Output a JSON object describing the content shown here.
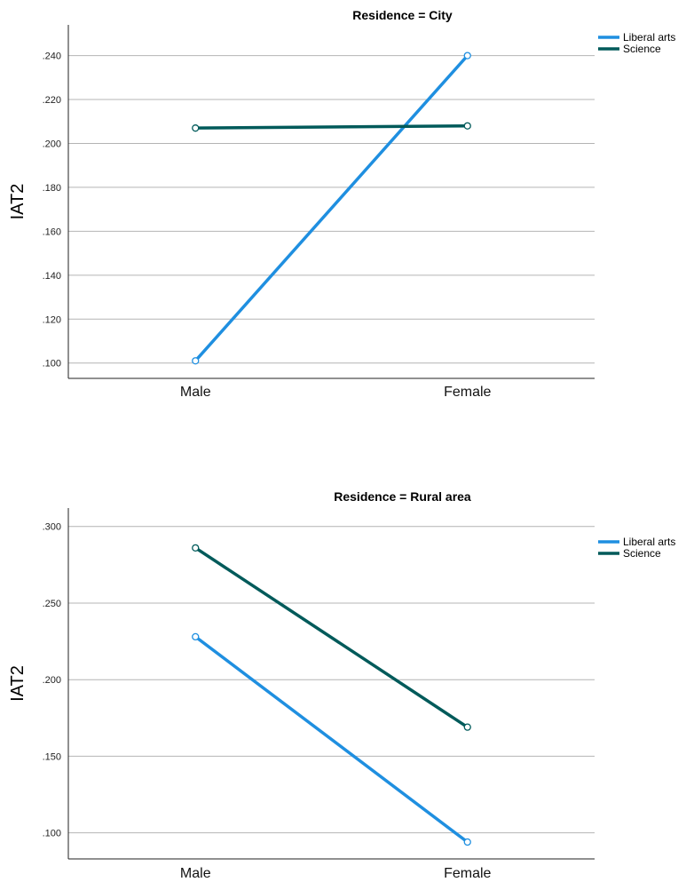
{
  "chart_data": [
    {
      "type": "line",
      "title": "Residence = City",
      "ylabel": "IAT2",
      "xlabel": "",
      "categories": [
        "Male",
        "Female"
      ],
      "ylim": [
        0.093,
        0.254
      ],
      "yticks": [
        0.1,
        0.12,
        0.14,
        0.16,
        0.18,
        0.2,
        0.22,
        0.24
      ],
      "ytick_labels": [
        ".100",
        ".120",
        ".140",
        ".160",
        ".180",
        ".200",
        ".220",
        ".240"
      ],
      "grid": true,
      "legend_position": "right",
      "series": [
        {
          "name": "Liberal arts",
          "color": "#1f8fe0",
          "values": [
            0.101,
            0.24
          ]
        },
        {
          "name": "Science",
          "color": "#005a5a",
          "values": [
            0.207,
            0.208
          ]
        }
      ]
    },
    {
      "type": "line",
      "title": "Residence = Rural area",
      "ylabel": "IAT2",
      "xlabel": "",
      "categories": [
        "Male",
        "Female"
      ],
      "ylim": [
        0.083,
        0.312
      ],
      "yticks": [
        0.1,
        0.15,
        0.2,
        0.25,
        0.3
      ],
      "ytick_labels": [
        ".100",
        ".150",
        ".200",
        ".250",
        ".300"
      ],
      "grid": true,
      "legend_position": "right",
      "series": [
        {
          "name": "Liberal arts",
          "color": "#1f8fe0",
          "values": [
            0.228,
            0.094
          ]
        },
        {
          "name": "Science",
          "color": "#005a5a",
          "values": [
            0.286,
            0.169
          ]
        }
      ]
    }
  ]
}
